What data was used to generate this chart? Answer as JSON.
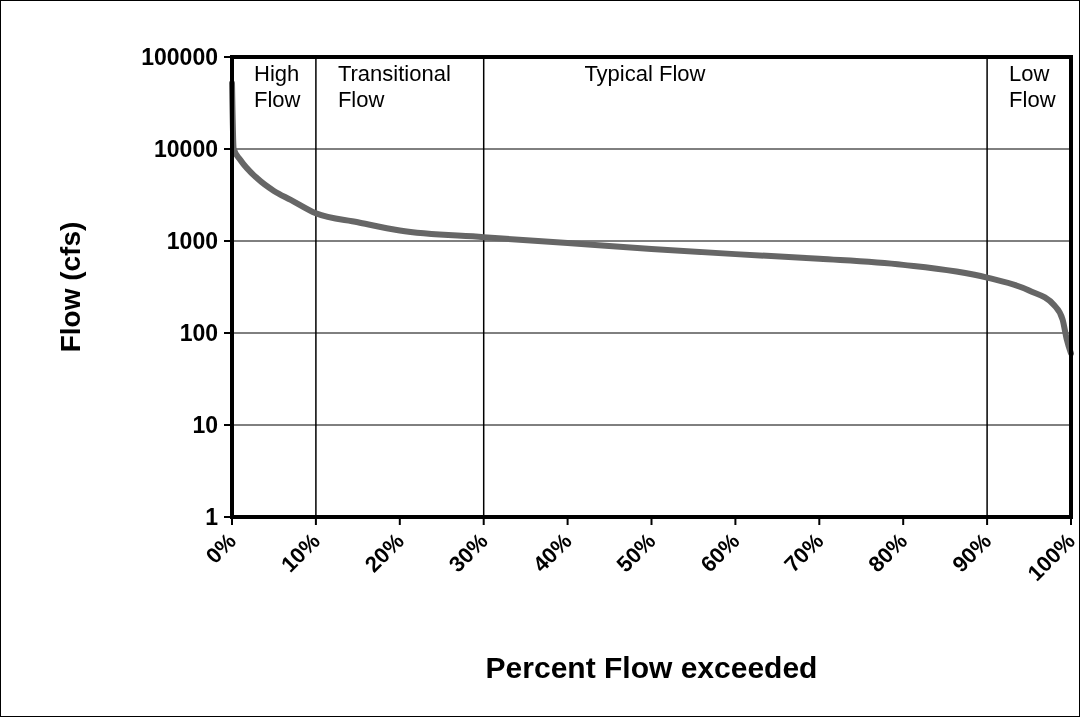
{
  "chart_data": {
    "type": "line",
    "xlabel": "Percent Flow exceeded",
    "ylabel": "Flow (cfs)",
    "x": [
      0,
      0.2,
      1,
      3,
      5,
      7,
      10,
      15,
      20,
      30,
      40,
      50,
      60,
      70,
      80,
      90,
      95,
      98,
      99,
      99.5,
      100
    ],
    "series": [
      {
        "color": "#666666",
        "values": [
          52000,
          10000,
          7600,
          4800,
          3500,
          2800,
          2000,
          1600,
          1300,
          1100,
          950,
          820,
          720,
          640,
          550,
          400,
          290,
          200,
          140,
          85,
          60
        ]
      }
    ],
    "xlim": [
      0,
      100
    ],
    "xticks": [
      {
        "value": 0,
        "label": "0%"
      },
      {
        "value": 10,
        "label": "10%"
      },
      {
        "value": 20,
        "label": "20%"
      },
      {
        "value": 30,
        "label": "30%"
      },
      {
        "value": 40,
        "label": "40%"
      },
      {
        "value": 50,
        "label": "50%"
      },
      {
        "value": 60,
        "label": "60%"
      },
      {
        "value": 70,
        "label": "70%"
      },
      {
        "value": 80,
        "label": "80%"
      },
      {
        "value": 90,
        "label": "90%"
      },
      {
        "value": 100,
        "label": "100%"
      }
    ],
    "ylim": [
      1,
      100000
    ],
    "yticks": [
      1,
      10,
      100,
      1000,
      10000,
      100000
    ],
    "log": "y",
    "grid": "y",
    "marker": "none",
    "line_style": "solid",
    "ref_lines": [
      {
        "axis": "x",
        "value": 10,
        "color": "#000000"
      },
      {
        "axis": "x",
        "value": 30,
        "color": "#000000"
      },
      {
        "axis": "x",
        "value": 90,
        "color": "#000000"
      }
    ],
    "annotations": [
      "High\nFlow",
      "Transitional\nFlow",
      "Typical Flow",
      "Low\nFlow"
    ]
  }
}
